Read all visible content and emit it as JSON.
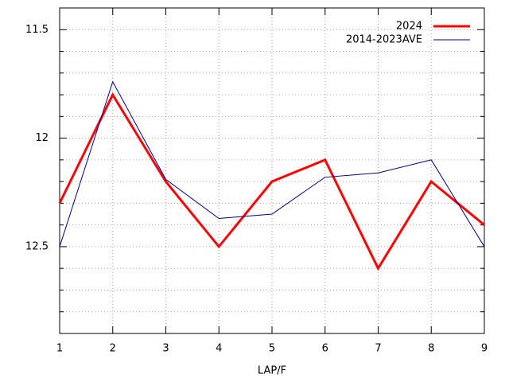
{
  "chart_data": {
    "type": "line",
    "x_label": "LAP/F",
    "x": [
      1,
      2,
      3,
      4,
      5,
      6,
      7,
      8,
      9
    ],
    "xlim": [
      1,
      9
    ],
    "xticks": [
      1,
      2,
      3,
      4,
      5,
      6,
      7,
      8,
      9
    ],
    "ylim": [
      12.9,
      11.4
    ],
    "yticks": [
      11.5,
      12,
      12.5
    ],
    "y_minor_ticks": [
      11.4,
      11.6,
      11.7,
      11.8,
      11.9,
      12.1,
      12.2,
      12.3,
      12.4,
      12.6,
      12.7,
      12.8
    ],
    "grid": true,
    "legend": "top-right",
    "series": [
      {
        "name": "2024",
        "color": "#ff0000",
        "width": 3,
        "values": [
          12.3,
          11.8,
          12.2,
          12.5,
          12.2,
          12.1,
          12.6,
          12.2,
          12.4
        ]
      },
      {
        "name": "2014-2023AVE",
        "color": "#00008b",
        "width": 1,
        "values": [
          12.5,
          11.74,
          12.19,
          12.37,
          12.35,
          12.18,
          12.16,
          12.1,
          12.5
        ]
      }
    ]
  }
}
